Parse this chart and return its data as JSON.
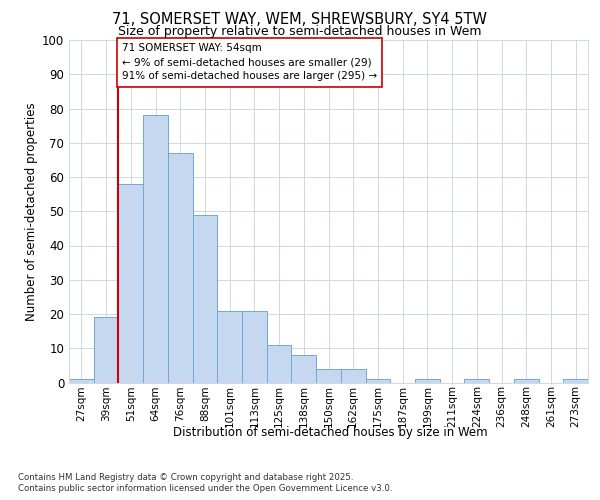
{
  "title_line1": "71, SOMERSET WAY, WEM, SHREWSBURY, SY4 5TW",
  "title_line2": "Size of property relative to semi-detached houses in Wem",
  "xlabel": "Distribution of semi-detached houses by size in Wem",
  "ylabel": "Number of semi-detached properties",
  "categories": [
    "27sqm",
    "39sqm",
    "51sqm",
    "64sqm",
    "76sqm",
    "88sqm",
    "101sqm",
    "113sqm",
    "125sqm",
    "138sqm",
    "150sqm",
    "162sqm",
    "175sqm",
    "187sqm",
    "199sqm",
    "211sqm",
    "224sqm",
    "236sqm",
    "248sqm",
    "261sqm",
    "273sqm"
  ],
  "values": [
    1,
    19,
    58,
    78,
    67,
    49,
    21,
    21,
    11,
    8,
    4,
    4,
    1,
    0,
    1,
    0,
    1,
    0,
    1,
    0,
    1
  ],
  "bar_color": "#c5d8f0",
  "bar_edge_color": "#6fa8d8",
  "vline_color": "#cc0000",
  "annotation_title": "71 SOMERSET WAY: 54sqm",
  "annotation_line2": "← 9% of semi-detached houses are smaller (29)",
  "annotation_line3": "91% of semi-detached houses are larger (295) →",
  "annotation_box_color": "#ffffff",
  "annotation_box_edge": "#cc0000",
  "ylim": [
    0,
    100
  ],
  "yticks": [
    0,
    10,
    20,
    30,
    40,
    50,
    60,
    70,
    80,
    90,
    100
  ],
  "footnote_line1": "Contains HM Land Registry data © Crown copyright and database right 2025.",
  "footnote_line2": "Contains public sector information licensed under the Open Government Licence v3.0.",
  "bg_color": "#ffffff",
  "plot_bg_color": "#ffffff",
  "grid_color": "#d0d8e8"
}
